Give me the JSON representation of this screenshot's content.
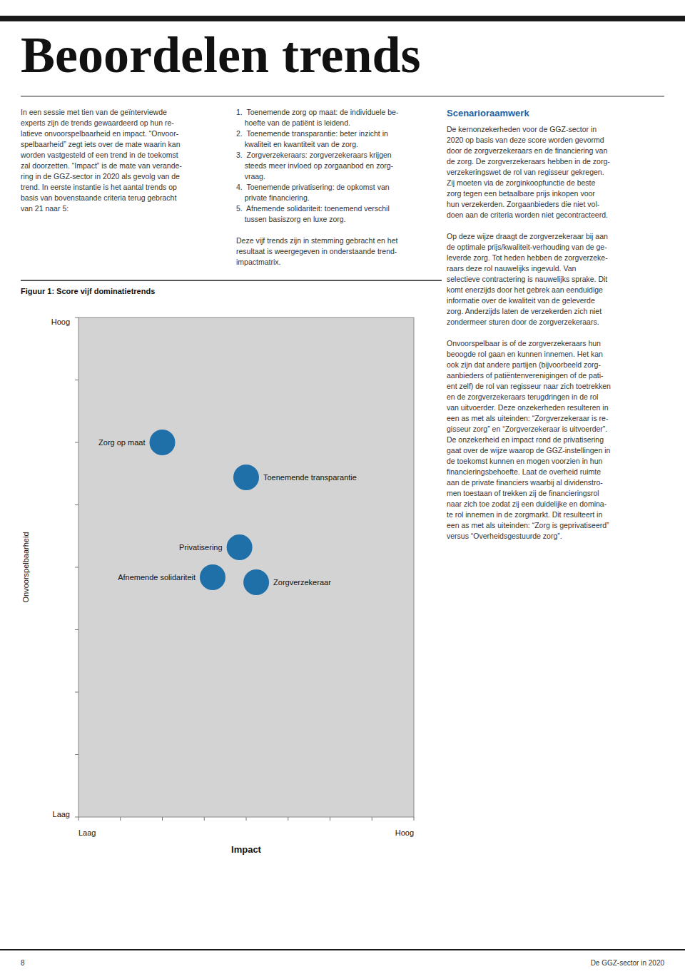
{
  "page": {
    "title": "Beoordelen trends",
    "page_number": "8",
    "footer_text": "De GGZ-sector in 2020",
    "columns": [
      {
        "paragraphs": [
          [
            "In een sessie met tien van de geïnterviewde",
            "experts zijn de trends gewaardeerd op hun re-",
            "latieve onvoorspelbaarheid en impact. “Onvoor-",
            "spelbaarheid” zegt iets over de mate waarin kan",
            "worden vastgesteld of een trend in de toekomst",
            "zal doorzetten. “Impact” is de mate van verande-",
            "ring in de GGZ-sector in 2020 als gevolg van de",
            "trend. In eerste instantie is het aantal trends op",
            "basis van bovenstaande criteria terug gebracht",
            "van 21 naar 5:"
          ]
        ]
      },
      {
        "paragraphs": [
          [
            "1.  Toenemende zorg op maat: de individuele be-",
            "    hoefte van de patiënt is leidend.",
            "2.  Toenemende transparantie: beter inzicht in",
            "    kwaliteit en kwantiteit van de zorg.",
            "3.  Zorgverzekeraars: zorgverzekeraars krijgen",
            "    steeds meer invloed op zorgaanbod en zorg-",
            "    vraag.",
            "4.  Toenemende privatisering: de opkomst van",
            "    private financiering.",
            "5.  Afnemende solidariteit: toenemend verschil",
            "    tussen basiszorg en luxe zorg."
          ],
          [
            "Deze vijf trends zijn in stemming gebracht en het",
            "resultaat is weergegeven in onderstaande trend-",
            "impactmatrix."
          ]
        ]
      },
      {
        "heading": "Scenarioraamwerk",
        "paragraphs": [
          [
            "De kernonzekerheden voor de GGZ-sector in",
            "2020 op basis van deze score worden gevormd",
            "door de zorgverzekeraars en de financiering van",
            "de zorg. De zorgverzekeraars hebben in de zorg-",
            "verzekeringswet de rol van regisseur gekregen.",
            "Zij moeten via de zorginkoopfunctie de beste",
            "zorg tegen een betaalbare prijs inkopen voor",
            "hun verzekerden. Zorgaanbieders die niet vol-",
            "doen aan de criteria worden niet gecontracteerd."
          ],
          [
            "Op deze wijze draagt de zorgverzekeraar bij aan",
            "de optimale prijs/kwaliteit-verhouding van de ge-",
            "leverde zorg. Tot heden hebben de zorgverzeke-",
            "raars deze rol nauwelijks ingevuld. Van",
            "selectieve contractering is nauwelijks sprake. Dit",
            "komt enerzijds door het gebrek aan eenduidige",
            "informatie over de kwaliteit van de geleverde",
            "zorg. Anderzijds laten de verzekerden zich niet",
            "zondermeer sturen door de zorgverzekeraars."
          ],
          [
            "Onvoorspelbaar is of de zorgverzekeraars hun",
            "beoogde rol gaan en kunnen innemen. Het kan",
            "ook zijn dat andere partijen (bijvoorbeeld zorg-",
            "aanbieders of patiëntenverenigingen of de pati-",
            "ent zelf) de rol van regisseur naar zich toetrekken",
            "en de zorgverzekeraars terugdringen in de rol",
            "van uitvoerder. Deze onzekerheden resulteren in",
            "een as met als uiteinden: “Zorgverzekeraar is re-",
            "gisseur zorg” en “Zorgverzekeraar is uitvoerder”.",
            "De onzekerheid en impact rond de privatisering",
            "gaat over de wijze waarop de GGZ-instellingen in",
            "de toekomst kunnen en mogen voorzien in hun",
            "financieringsbehoefte. Laat de overheid ruimte",
            "aan de private financiers waarbij al dividenstro-",
            "men toestaan of trekken zij de financieringsrol",
            "naar zich toe zodat zij een duidelijke en domina-",
            "te rol innemen in de zorgmarkt. Dit resulteert in",
            "een as met als uiteinden: “Zorg is geprivatiseerd”",
            "versus “Overheidsgestuurde zorg”."
          ]
        ]
      }
    ]
  },
  "chart_data": {
    "type": "scatter",
    "title": "Figuur 1: Score vijf dominatietrends",
    "x_label": "Impact",
    "y_label": "Onvoorspelbaarheid",
    "x_end_labels": [
      "Laag",
      "Hoog"
    ],
    "y_end_labels": [
      "Laag",
      "Hoog"
    ],
    "x": [
      2.5,
      5.0,
      4.8,
      4.0,
      5.3
    ],
    "values": [
      7.5,
      6.8,
      5.4,
      4.8,
      4.7
    ],
    "labels": [
      "Zorg op maat",
      "Toenemende transparantie",
      "Privatisering",
      "Afnemende solidariteit",
      "Zorgverzekeraar"
    ],
    "color": "#1f6fa8",
    "xlim": [
      0,
      10
    ],
    "ylim": [
      0,
      10
    ],
    "xticks": [
      0,
      1.25,
      2.5,
      3.75,
      5,
      6.25,
      7.5,
      8.75,
      10
    ],
    "yticks": [
      0,
      1.25,
      2.5,
      3.75,
      5,
      6.25,
      7.5,
      8.75,
      10
    ],
    "tick_labels": false,
    "grid": false
  }
}
